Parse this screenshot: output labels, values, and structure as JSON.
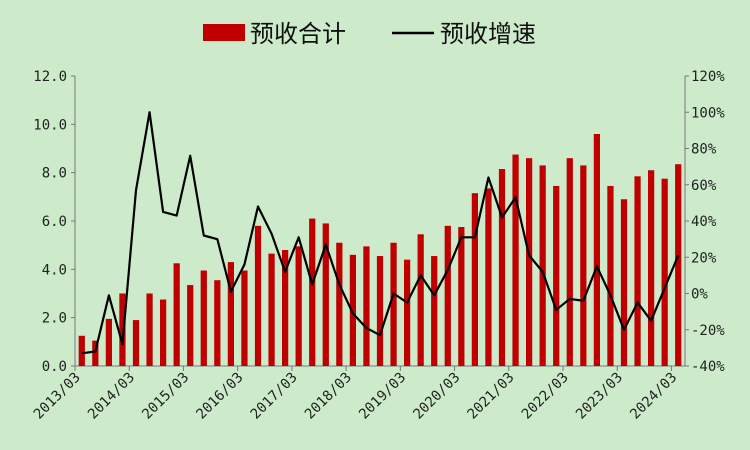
{
  "chart_data": {
    "type": "bar+line",
    "legend": {
      "position": "top"
    },
    "series": [
      {
        "name": "预收合计",
        "type": "bar",
        "axis": "left",
        "color": "#c00000",
        "values": [
          1.25,
          1.05,
          1.95,
          3.0,
          1.9,
          3.0,
          2.75,
          4.25,
          3.35,
          3.95,
          3.55,
          4.3,
          3.95,
          5.8,
          4.65,
          4.8,
          4.95,
          6.1,
          5.9,
          5.1,
          4.6,
          4.95,
          4.55,
          5.1,
          4.4,
          5.45,
          4.55,
          5.8,
          5.75,
          7.15,
          7.35,
          8.15,
          8.75,
          8.6,
          8.3,
          7.45,
          8.6,
          8.3,
          9.6,
          7.45,
          6.9,
          7.85,
          8.1,
          7.75,
          8.35
        ]
      },
      {
        "name": "预收增速",
        "type": "line",
        "axis": "right",
        "color": "#000000",
        "values": [
          -33,
          -32,
          -1,
          -28,
          57,
          100,
          45,
          43,
          76,
          32,
          30,
          1,
          16,
          48,
          33,
          12,
          31,
          5,
          27,
          5,
          -11,
          -19,
          -23,
          0,
          -5,
          10,
          -1,
          13,
          31,
          31,
          64,
          42,
          53,
          21,
          12,
          -9,
          -3,
          -4,
          15,
          -1,
          -20,
          -5,
          -15,
          3,
          21
        ]
      }
    ],
    "x_tick_labels": [
      "2013/03",
      "2014/03",
      "2015/03",
      "2016/03",
      "2017/03",
      "2018/03",
      "2019/03",
      "2020/03",
      "2021/03",
      "2022/03",
      "2023/03",
      "2024/03"
    ],
    "left_axis": {
      "ylim": [
        0,
        12
      ],
      "ticks": [
        "0.0",
        "2.0",
        "4.0",
        "6.0",
        "8.0",
        "10.0",
        "12.0"
      ]
    },
    "right_axis": {
      "ylim": [
        -40,
        120
      ],
      "ticks": [
        "-40%",
        "-20%",
        "0%",
        "20%",
        "40%",
        "60%",
        "80%",
        "100%",
        "120%"
      ]
    },
    "grid": false
  },
  "colors": {
    "background": "#cdebcb",
    "bar": "#c00000",
    "line": "#000000"
  }
}
